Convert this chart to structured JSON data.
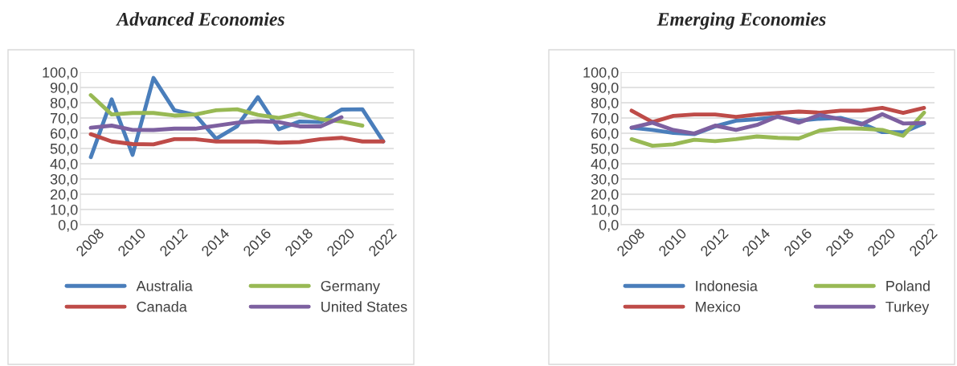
{
  "chart_data": [
    {
      "type": "line",
      "title": "Advanced Economies",
      "x": [
        2008,
        2009,
        2010,
        2011,
        2012,
        2013,
        2014,
        2015,
        2016,
        2017,
        2018,
        2019,
        2020,
        2021,
        2022
      ],
      "series": [
        {
          "name": "Australia",
          "color": "#4a7ebb",
          "values": [
            44.3,
            82.2,
            45.8,
            96.3,
            75.1,
            72.0,
            56.4,
            64.5,
            83.7,
            62.6,
            67.7,
            67.3,
            75.5,
            75.7,
            54.6
          ]
        },
        {
          "name": "Canada",
          "color": "#be4b48",
          "values": [
            59.4,
            54.6,
            52.9,
            52.7,
            56.1,
            56.1,
            54.6,
            54.6,
            54.6,
            53.8,
            54.2,
            56.1,
            57.0,
            54.6,
            54.6
          ]
        },
        {
          "name": "Germany",
          "color": "#98b954",
          "values": [
            85.0,
            72.3,
            73.3,
            73.3,
            71.6,
            72.3,
            75.1,
            75.7,
            72.0,
            70.1,
            72.9,
            69.2,
            67.7,
            65.0,
            null
          ]
        },
        {
          "name": "United States",
          "color": "#7d60a0",
          "values": [
            63.6,
            65.0,
            62.2,
            62.1,
            63.0,
            63.0,
            64.9,
            66.9,
            67.9,
            67.3,
            64.5,
            64.5,
            70.5,
            null,
            null
          ]
        }
      ],
      "xlim": [
        2007.5,
        2022.5
      ],
      "xticks": [
        2008,
        2010,
        2012,
        2014,
        2016,
        2018,
        2020,
        2022
      ],
      "ylim": [
        0,
        100
      ],
      "yticks": [
        {
          "value": 0,
          "label": "0,0"
        },
        {
          "value": 10,
          "label": "10,0"
        },
        {
          "value": 20,
          "label": "20,0"
        },
        {
          "value": 30,
          "label": "30,0"
        },
        {
          "value": 40,
          "label": "40,0"
        },
        {
          "value": 50,
          "label": "50,0"
        },
        {
          "value": 60,
          "label": "60,0"
        },
        {
          "value": 70,
          "label": "70,0"
        },
        {
          "value": 80,
          "label": "80,0"
        },
        {
          "value": 90,
          "label": "90,0"
        },
        {
          "value": 100,
          "label": "100,0"
        }
      ],
      "grid": "y",
      "legend": "bottom",
      "marker": "none",
      "line_style": "solid"
    },
    {
      "type": "line",
      "title": "Emerging Economies",
      "x": [
        2008,
        2009,
        2010,
        2011,
        2012,
        2013,
        2014,
        2015,
        2016,
        2017,
        2018,
        2019,
        2020,
        2021,
        2022
      ],
      "series": [
        {
          "name": "Indonesia",
          "color": "#4a7ebb",
          "values": [
            63.6,
            62.2,
            60.2,
            59.4,
            64.5,
            68.2,
            69.2,
            70.7,
            68.2,
            69.5,
            70.1,
            66.4,
            60.7,
            60.7,
            66.4
          ]
        },
        {
          "name": "Mexico",
          "color": "#be4b48",
          "values": [
            74.8,
            67.3,
            71.4,
            72.3,
            72.3,
            70.7,
            72.3,
            73.3,
            74.2,
            73.5,
            74.8,
            74.8,
            76.6,
            73.3,
            76.6
          ]
        },
        {
          "name": "Poland",
          "color": "#98b954",
          "values": [
            56.1,
            51.8,
            52.7,
            55.7,
            54.8,
            56.1,
            57.9,
            57.0,
            56.6,
            61.7,
            63.2,
            63.0,
            62.2,
            58.3,
            73.5
          ]
        },
        {
          "name": "Turkey",
          "color": "#7d60a0",
          "values": [
            63.6,
            66.9,
            62.1,
            59.8,
            65.0,
            62.2,
            65.4,
            71.0,
            66.9,
            72.0,
            69.2,
            65.8,
            72.5,
            66.4,
            66.7
          ]
        }
      ],
      "xlim": [
        2007.5,
        2022.5
      ],
      "xticks": [
        2008,
        2010,
        2012,
        2014,
        2016,
        2018,
        2020,
        2022
      ],
      "ylim": [
        0,
        100
      ],
      "yticks": [
        {
          "value": 0,
          "label": "0,0"
        },
        {
          "value": 10,
          "label": "10,0"
        },
        {
          "value": 20,
          "label": "20,0"
        },
        {
          "value": 30,
          "label": "30,0"
        },
        {
          "value": 40,
          "label": "40,0"
        },
        {
          "value": 50,
          "label": "50,0"
        },
        {
          "value": 60,
          "label": "60,0"
        },
        {
          "value": 70,
          "label": "70,0"
        },
        {
          "value": 80,
          "label": "80,0"
        },
        {
          "value": 90,
          "label": "90,0"
        },
        {
          "value": 100,
          "label": "100,0"
        }
      ],
      "grid": "y",
      "legend": "bottom",
      "marker": "none",
      "line_style": "solid"
    }
  ]
}
